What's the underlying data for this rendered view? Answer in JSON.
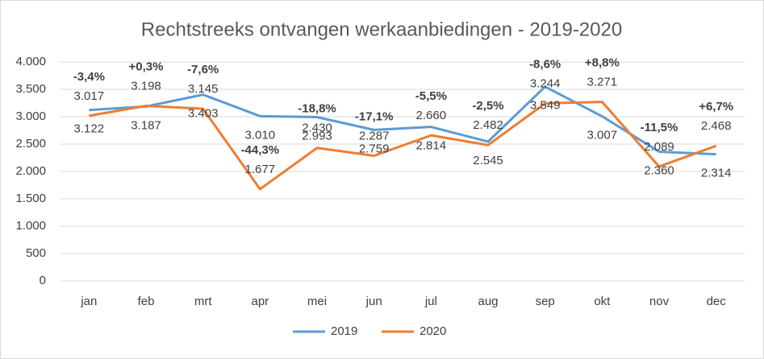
{
  "chart_data": {
    "type": "line",
    "title": "Rechtstreeks ontvangen werkaanbiedingen - 2019-2020",
    "categories": [
      "jan",
      "feb",
      "mrt",
      "apr",
      "mei",
      "jun",
      "jul",
      "aug",
      "sep",
      "okt",
      "nov",
      "dec"
    ],
    "series": [
      {
        "name": "2019",
        "color": "#5b9bd5",
        "values": [
          3122,
          3187,
          3403,
          3010,
          2993,
          2759,
          2814,
          2545,
          3549,
          3007,
          2360,
          2314
        ],
        "value_labels": [
          "3.122",
          "3.187",
          "3.403",
          "3.010",
          "2.993",
          "2.759",
          "2.814",
          "2.545",
          "3.549",
          "3.007",
          "2.360",
          "2.314"
        ]
      },
      {
        "name": "2020",
        "color": "#ed7d31",
        "values": [
          3017,
          3198,
          3145,
          1677,
          2430,
          2287,
          2660,
          2482,
          3244,
          3271,
          2089,
          2468
        ],
        "value_labels": [
          "3.017",
          "3.198",
          "3.145",
          "1.677",
          "2.430",
          "2.287",
          "2.660",
          "2.482",
          "3.244",
          "3.271",
          "2.089",
          "2.468"
        ]
      }
    ],
    "annotations": [
      "-3,4%",
      "+0,3%",
      "-7,6%",
      "-44,3%",
      "-18,8%",
      "-17,1%",
      "-5,5%",
      "-2,5%",
      "-8,6%",
      "+8,8%",
      "-11,5%",
      "+6,7%"
    ],
    "ylim": [
      0,
      4000
    ],
    "yticks": [
      0,
      500,
      {
        "value": 1000,
        "label": "1.000"
      },
      {
        "value": 1500,
        "label": "1.500"
      },
      {
        "value": 2000,
        "label": "2.000"
      },
      {
        "value": 2500,
        "label": "2.500"
      },
      {
        "value": 3000,
        "label": "3.000"
      },
      {
        "value": 3500,
        "label": "3.500"
      },
      {
        "value": 4000,
        "label": "4.000"
      }
    ],
    "grid": true,
    "legend": "bottom"
  }
}
